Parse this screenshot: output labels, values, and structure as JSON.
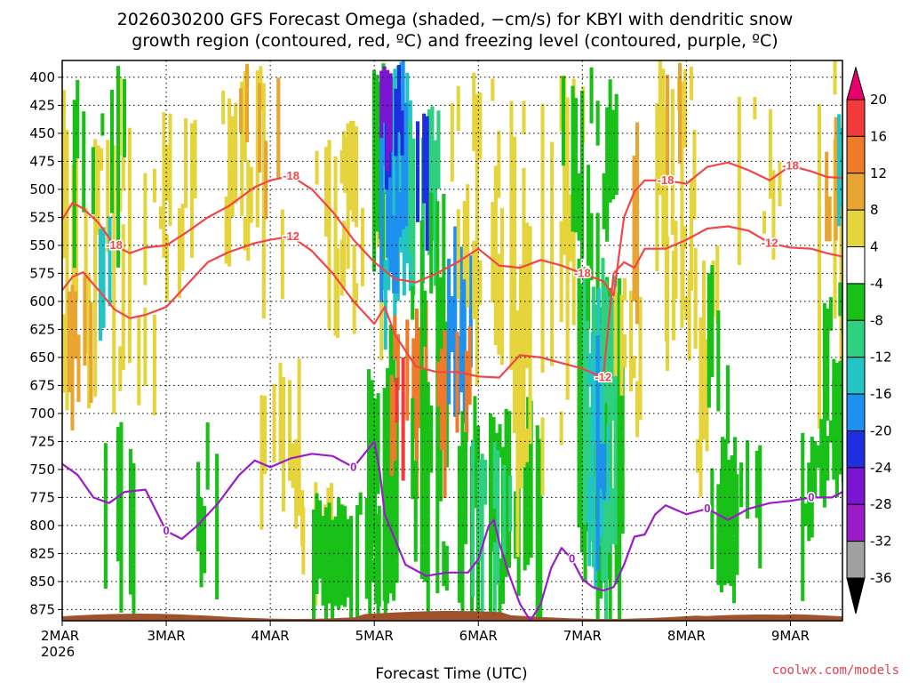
{
  "chart_data": {
    "type": "heatmap",
    "title_line1": "2026030200 GFS Forecast Omega (shaded, −cm/s) for KBYI with dendritic snow",
    "title_line2": "growth region (contoured, red, ºC) and freezing level (contoured, purple, ºC)",
    "xlabel": "Forecast Time (UTC)",
    "credit": "coolwx.com/models",
    "y_ticks": [
      "400",
      "425",
      "450",
      "475",
      "500",
      "525",
      "550",
      "575",
      "600",
      "625",
      "650",
      "675",
      "700",
      "725",
      "750",
      "775",
      "800",
      "825",
      "850",
      "875"
    ],
    "x_ticks": [
      "2MAR",
      "3MAR",
      "4MAR",
      "5MAR",
      "6MAR",
      "7MAR",
      "8MAR",
      "9MAR"
    ],
    "x_year": "2026",
    "x_range_days": [
      0,
      7.5
    ],
    "y_range_hpa": [
      385,
      885
    ],
    "colorbar_labels": [
      "20",
      "16",
      "12",
      "8",
      "4",
      "-4",
      "-8",
      "-12",
      "-16",
      "-20",
      "-24",
      "-28",
      "-32",
      "-36"
    ],
    "colorbar_colors": [
      "#e8006e",
      "#f23a3a",
      "#ef7a2a",
      "#e8a531",
      "#e6d43d",
      "#ffffff",
      "#18c018",
      "#2ecf7f",
      "#22c4c4",
      "#1e90ef",
      "#1e2fe0",
      "#7a16d2",
      "#9b1bc8",
      "#a0a0a0",
      "#000000"
    ],
    "contour_labels": {
      "dgz_minus18": "-18",
      "dgz_minus12": "-12",
      "freezing": "0"
    },
    "dgz_minus18": {
      "t": [
        0,
        0.1,
        0.2,
        0.35,
        0.5,
        0.65,
        0.8,
        1.0,
        1.2,
        1.4,
        1.6,
        1.85,
        2.0,
        2.2,
        2.4,
        2.6,
        2.8,
        3.0,
        3.2,
        3.4,
        3.6,
        3.8,
        4.0,
        4.2,
        4.4,
        4.6,
        4.8,
        5.0,
        5.2,
        5.3,
        5.4,
        5.5,
        5.6,
        5.8,
        6.0,
        6.2,
        6.4,
        6.6,
        6.8,
        7.0,
        7.2,
        7.35,
        7.5
      ],
      "p": [
        527,
        512,
        517,
        530,
        550,
        557,
        552,
        550,
        538,
        525,
        515,
        498,
        492,
        488,
        500,
        520,
        545,
        565,
        580,
        583,
        575,
        565,
        553,
        568,
        570,
        563,
        568,
        575,
        582,
        595,
        525,
        502,
        492,
        492,
        495,
        480,
        476,
        483,
        492,
        479,
        484,
        489,
        490
      ]
    },
    "dgz_minus12": {
      "t": [
        0,
        0.1,
        0.2,
        0.35,
        0.5,
        0.65,
        0.8,
        1.0,
        1.2,
        1.4,
        1.6,
        1.85,
        2.0,
        2.2,
        2.4,
        2.6,
        2.8,
        3.0,
        3.1,
        3.2,
        3.4,
        3.6,
        3.8,
        4.0,
        4.2,
        4.4,
        4.6,
        4.8,
        5.0,
        5.2,
        5.3,
        5.4,
        5.5,
        5.6,
        5.8,
        6.0,
        6.2,
        6.4,
        6.6,
        6.8,
        7.0,
        7.2,
        7.35,
        7.5
      ],
      "p": [
        590,
        578,
        574,
        590,
        607,
        615,
        612,
        605,
        585,
        565,
        556,
        548,
        545,
        542,
        555,
        575,
        600,
        620,
        605,
        630,
        658,
        663,
        663,
        667,
        668,
        648,
        650,
        655,
        660,
        668,
        575,
        565,
        570,
        553,
        553,
        545,
        535,
        533,
        537,
        548,
        552,
        553,
        557,
        560
      ]
    },
    "freezing_level": {
      "t": [
        0,
        0.15,
        0.3,
        0.45,
        0.6,
        0.8,
        1.0,
        1.15,
        1.3,
        1.5,
        1.7,
        1.85,
        2.0,
        2.2,
        2.4,
        2.6,
        2.8,
        3.0,
        3.05,
        3.1,
        3.3,
        3.5,
        3.7,
        3.9,
        4.0,
        4.1,
        4.15,
        4.2,
        4.3,
        4.4,
        4.5,
        4.6,
        4.7,
        4.8,
        4.9,
        5.0,
        5.1,
        5.2,
        5.3,
        5.4,
        5.5,
        5.6,
        5.7,
        5.8,
        6.0,
        6.2,
        6.4,
        6.6,
        6.8,
        7.0,
        7.2,
        7.4,
        7.5
      ],
      "p": [
        745,
        755,
        775,
        780,
        770,
        768,
        805,
        812,
        800,
        780,
        755,
        742,
        748,
        740,
        736,
        738,
        748,
        725,
        750,
        790,
        835,
        845,
        842,
        842,
        830,
        800,
        795,
        815,
        845,
        870,
        885,
        870,
        838,
        820,
        830,
        848,
        855,
        858,
        855,
        835,
        810,
        808,
        790,
        782,
        790,
        785,
        795,
        785,
        780,
        778,
        775,
        775,
        770
      ]
    }
  }
}
